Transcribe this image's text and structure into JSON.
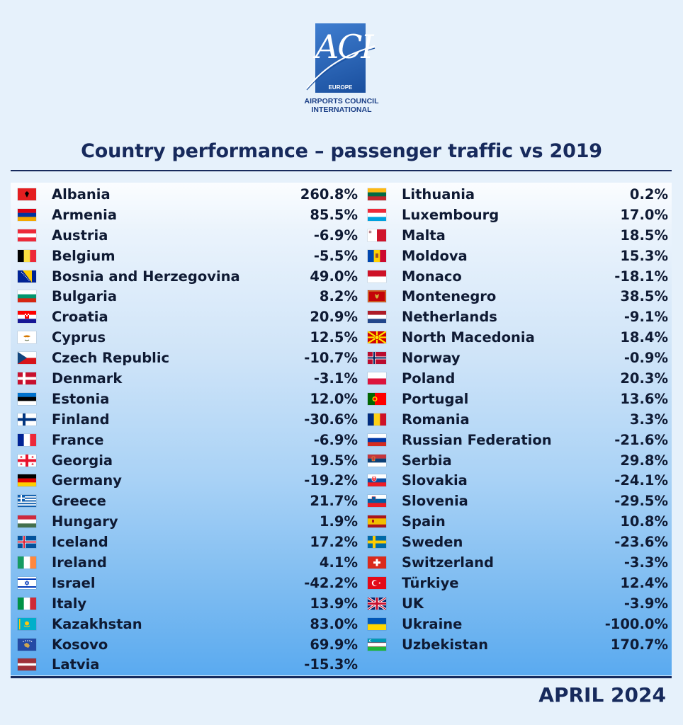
{
  "logo": {
    "mark": "ACI",
    "region": "EUROPE",
    "name_line1": "AIRPORTS COUNCIL",
    "name_line2": "INTERNATIONAL"
  },
  "title": "Country performance – passenger traffic vs 2019",
  "date": "APRIL 2024",
  "left_column": [
    {
      "country": "Albania",
      "value": "260.8%",
      "icon": "albania-flag"
    },
    {
      "country": "Armenia",
      "value": "85.5%",
      "icon": "armenia-flag"
    },
    {
      "country": "Austria",
      "value": "-6.9%",
      "icon": "austria-flag"
    },
    {
      "country": "Belgium",
      "value": "-5.5%",
      "icon": "belgium-flag"
    },
    {
      "country": "Bosnia and Herzegovina",
      "value": "49.0%",
      "icon": "bosnia-flag"
    },
    {
      "country": "Bulgaria",
      "value": "8.2%",
      "icon": "bulgaria-flag"
    },
    {
      "country": "Croatia",
      "value": "20.9%",
      "icon": "croatia-flag"
    },
    {
      "country": "Cyprus",
      "value": "12.5%",
      "icon": "cyprus-flag"
    },
    {
      "country": "Czech Republic",
      "value": "-10.7%",
      "icon": "czech-flag"
    },
    {
      "country": "Denmark",
      "value": "-3.1%",
      "icon": "denmark-flag"
    },
    {
      "country": "Estonia",
      "value": "12.0%",
      "icon": "estonia-flag"
    },
    {
      "country": "Finland",
      "value": "-30.6%",
      "icon": "finland-flag"
    },
    {
      "country": "France",
      "value": "-6.9%",
      "icon": "france-flag"
    },
    {
      "country": "Georgia",
      "value": "19.5%",
      "icon": "georgia-flag"
    },
    {
      "country": "Germany",
      "value": "-19.2%",
      "icon": "germany-flag"
    },
    {
      "country": "Greece",
      "value": "21.7%",
      "icon": "greece-flag"
    },
    {
      "country": "Hungary",
      "value": "1.9%",
      "icon": "hungary-flag"
    },
    {
      "country": "Iceland",
      "value": "17.2%",
      "icon": "iceland-flag"
    },
    {
      "country": "Ireland",
      "value": "4.1%",
      "icon": "ireland-flag"
    },
    {
      "country": "Israel",
      "value": "-42.2%",
      "icon": "israel-flag"
    },
    {
      "country": "Italy",
      "value": "13.9%",
      "icon": "italy-flag"
    },
    {
      "country": "Kazakhstan",
      "value": "83.0%",
      "icon": "kazakhstan-flag"
    },
    {
      "country": "Kosovo",
      "value": "69.9%",
      "icon": "kosovo-flag"
    },
    {
      "country": "Latvia",
      "value": "-15.3%",
      "icon": "latvia-flag"
    }
  ],
  "right_column": [
    {
      "country": "Lithuania",
      "value": "0.2%",
      "icon": "lithuania-flag"
    },
    {
      "country": "Luxembourg",
      "value": "17.0%",
      "icon": "luxembourg-flag"
    },
    {
      "country": "Malta",
      "value": "18.5%",
      "icon": "malta-flag"
    },
    {
      "country": "Moldova",
      "value": "15.3%",
      "icon": "moldova-flag"
    },
    {
      "country": "Monaco",
      "value": "-18.1%",
      "icon": "monaco-flag"
    },
    {
      "country": "Montenegro",
      "value": "38.5%",
      "icon": "montenegro-flag"
    },
    {
      "country": "Netherlands",
      "value": "-9.1%",
      "icon": "netherlands-flag"
    },
    {
      "country": "North Macedonia",
      "value": "18.4%",
      "icon": "north-macedonia-flag"
    },
    {
      "country": "Norway",
      "value": "-0.9%",
      "icon": "norway-flag"
    },
    {
      "country": "Poland",
      "value": "20.3%",
      "icon": "poland-flag"
    },
    {
      "country": "Portugal",
      "value": "13.6%",
      "icon": "portugal-flag"
    },
    {
      "country": "Romania",
      "value": "3.3%",
      "icon": "romania-flag"
    },
    {
      "country": "Russian Federation",
      "value": "-21.6%",
      "icon": "russia-flag"
    },
    {
      "country": "Serbia",
      "value": "29.8%",
      "icon": "serbia-flag"
    },
    {
      "country": "Slovakia",
      "value": "-24.1%",
      "icon": "slovakia-flag"
    },
    {
      "country": "Slovenia",
      "value": "-29.5%",
      "icon": "slovenia-flag"
    },
    {
      "country": "Spain",
      "value": "10.8%",
      "icon": "spain-flag"
    },
    {
      "country": "Sweden",
      "value": "-23.6%",
      "icon": "sweden-flag"
    },
    {
      "country": "Switzerland",
      "value": "-3.3%",
      "icon": "switzerland-flag"
    },
    {
      "country": "Türkiye",
      "value": "12.4%",
      "icon": "turkiye-flag"
    },
    {
      "country": "UK",
      "value": "-3.9%",
      "icon": "uk-flag"
    },
    {
      "country": "Ukraine",
      "value": "-100.0%",
      "icon": "ukraine-flag"
    },
    {
      "country": "Uzbekistan",
      "value": "170.7%",
      "icon": "uzbekistan-flag"
    }
  ],
  "colors": {
    "title": "#172a5c",
    "text": "#0f1a33",
    "logo_blue": "#1a4f9e",
    "background": "#e6f1fb"
  }
}
